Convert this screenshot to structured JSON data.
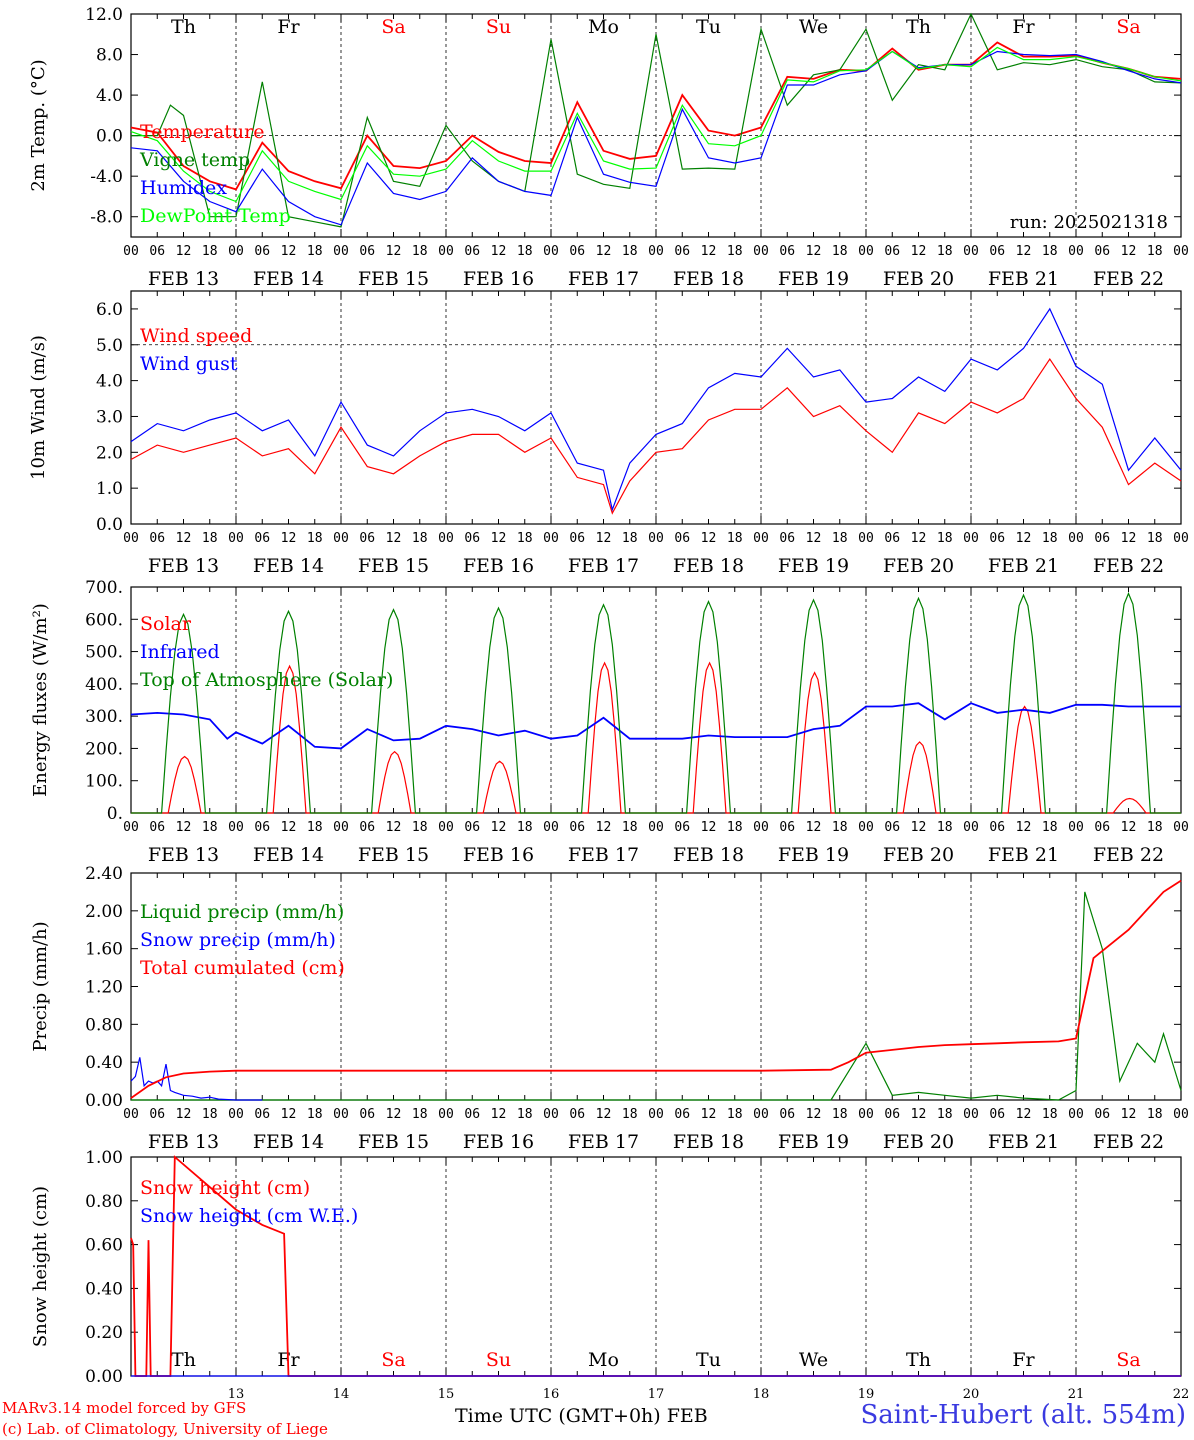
{
  "run_label": "run: 2025021318",
  "day_names": [
    "Th",
    "Fr",
    "Sa",
    "Su",
    "Mo",
    "Tu",
    "We",
    "Th",
    "Fr",
    "Sa"
  ],
  "day_colors": [
    "#000000",
    "#000000",
    "#ff0000",
    "#ff0000",
    "#000000",
    "#000000",
    "#000000",
    "#000000",
    "#000000",
    "#ff0000"
  ],
  "date_labels": [
    "FEB 13",
    "FEB 14",
    "FEB 15",
    "FEB 16",
    "FEB 17",
    "FEB 18",
    "FEB 19",
    "FEB 20",
    "FEB 21",
    "FEB 22"
  ],
  "hour_labels": [
    "00",
    "06",
    "12",
    "18"
  ],
  "hour_label_end": "00",
  "bottom_day_numbers": [
    "13",
    "14",
    "15",
    "16",
    "17",
    "18",
    "19",
    "20",
    "21",
    "22"
  ],
  "footer": {
    "credit_line1": "MARv3.14 model forced by GFS",
    "credit_line2": "(c) Lab. of Climatology, University of Liege",
    "time_axis": "Time UTC (GMT+0h)",
    "month": "FEB",
    "station": "Saint-Hubert (alt. 554m)"
  },
  "colors": {
    "red": "#ff0000",
    "green": "#008000",
    "blue": "#0000ff",
    "lightgreen": "#00ff00",
    "grid": "#000000"
  },
  "chart_data": [
    {
      "type": "line",
      "ylabel": "2m Temp. (°C)",
      "ylim": [
        -10,
        12
      ],
      "yticks": [
        "12.0",
        "8.0",
        "4.0",
        "0.0",
        "-4.0",
        "-8.0"
      ],
      "ytick_values": [
        12,
        8,
        4,
        0,
        -4,
        -8
      ],
      "dashed_y": [
        0
      ],
      "x_unit": "hours since Feb 13 00 UTC",
      "xlim": [
        0,
        240
      ],
      "legend_position": "top-left",
      "series": [
        {
          "name": "Temperature",
          "color": "#ff0000",
          "x": [
            0,
            6,
            12,
            18,
            24,
            30,
            36,
            42,
            48,
            54,
            60,
            66,
            72,
            78,
            84,
            90,
            96,
            102,
            108,
            114,
            120,
            126,
            132,
            138,
            144,
            150,
            156,
            162,
            168,
            174,
            180,
            186,
            192,
            198,
            204,
            210,
            216,
            222,
            228,
            234,
            240
          ],
          "y": [
            0.8,
            0.3,
            -3,
            -4.5,
            -5.3,
            -0.7,
            -3.5,
            -4.5,
            -5.2,
            0,
            -3,
            -3.2,
            -2.5,
            0,
            -1.6,
            -2.5,
            -2.7,
            3.3,
            -1.5,
            -2.3,
            -2,
            4,
            0.5,
            0,
            0.8,
            5.8,
            5.6,
            6.5,
            6.4,
            8.6,
            6.5,
            7,
            7,
            9.2,
            7.8,
            7.8,
            7.9,
            7.2,
            6.6,
            5.8,
            5.6
          ]
        },
        {
          "name": "Vigne temp",
          "color": "#008000",
          "x": [
            0,
            6,
            9,
            12,
            18,
            24,
            30,
            36,
            42,
            48,
            54,
            60,
            66,
            72,
            78,
            84,
            90,
            96,
            102,
            108,
            114,
            120,
            126,
            132,
            138,
            144,
            150,
            156,
            162,
            168,
            174,
            180,
            186,
            192,
            198,
            204,
            210,
            216,
            222,
            228,
            234,
            240
          ],
          "y": [
            0,
            0,
            3,
            2,
            -8,
            -8,
            5.3,
            -8,
            -8.5,
            -9,
            1.8,
            -4.5,
            -5,
            1,
            -2.5,
            -4.5,
            -5.5,
            9.5,
            -3.8,
            -4.8,
            -5.2,
            10,
            -3.3,
            -3.2,
            -3.3,
            10.5,
            3,
            6,
            6.5,
            10.5,
            3.5,
            7,
            6.5,
            12,
            6.5,
            7.2,
            7,
            7.5,
            6.8,
            6.5,
            5.3,
            5.2
          ]
        },
        {
          "name": "Humidex",
          "color": "#0000ff",
          "x": [
            0,
            6,
            12,
            18,
            24,
            30,
            36,
            42,
            48,
            54,
            60,
            66,
            72,
            78,
            84,
            90,
            96,
            102,
            108,
            114,
            120,
            126,
            132,
            138,
            144,
            150,
            156,
            162,
            168,
            174,
            180,
            186,
            192,
            198,
            204,
            210,
            216,
            222,
            228,
            234,
            240
          ],
          "y": [
            -1.2,
            -1.5,
            -4.5,
            -6.5,
            -7.5,
            -3.3,
            -6.5,
            -8,
            -8.8,
            -2.7,
            -5.7,
            -6.3,
            -5.5,
            -2.2,
            -4.5,
            -5.5,
            -5.9,
            1.8,
            -3.8,
            -4.6,
            -5,
            2.6,
            -2.2,
            -2.7,
            -2.2,
            5,
            5,
            6,
            6.4,
            8.3,
            6.7,
            7,
            7,
            8.3,
            8,
            7.9,
            8,
            7.3,
            6.4,
            5.6,
            5.2
          ]
        },
        {
          "name": "DewPoint Temp",
          "color": "#00ff00",
          "x": [
            0,
            6,
            12,
            18,
            24,
            30,
            36,
            42,
            48,
            54,
            60,
            66,
            72,
            78,
            84,
            90,
            96,
            102,
            108,
            114,
            120,
            126,
            132,
            138,
            144,
            150,
            156,
            162,
            168,
            174,
            180,
            186,
            192,
            198,
            204,
            210,
            216,
            222,
            228,
            234,
            240
          ],
          "y": [
            0.4,
            -0.5,
            -3.5,
            -5.5,
            -6.5,
            -1.5,
            -4.5,
            -5.5,
            -6.3,
            -1,
            -3.8,
            -4,
            -3.3,
            -0.5,
            -2.5,
            -3.5,
            -3.5,
            2.2,
            -2.5,
            -3.3,
            -3.2,
            3,
            -0.8,
            -1,
            0,
            5.5,
            5.3,
            6.4,
            6.5,
            8.3,
            6.6,
            7,
            6.8,
            8.7,
            7.5,
            7.5,
            7.8,
            7.2,
            6.6,
            5.8,
            5.4
          ]
        }
      ]
    },
    {
      "type": "line",
      "ylabel": "10m Wind (m/s)",
      "ylim": [
        0,
        6.5
      ],
      "yticks": [
        "6.0",
        "5.0",
        "4.0",
        "3.0",
        "2.0",
        "1.0",
        "0.0"
      ],
      "ytick_values": [
        6,
        5,
        4,
        3,
        2,
        1,
        0
      ],
      "dashed_y": [
        5
      ],
      "xlim": [
        0,
        240
      ],
      "legend_position": "top-left",
      "series": [
        {
          "name": "Wind speed",
          "color": "#ff0000",
          "x": [
            0,
            6,
            12,
            18,
            24,
            30,
            36,
            42,
            48,
            54,
            60,
            66,
            72,
            78,
            84,
            90,
            96,
            102,
            108,
            110,
            114,
            120,
            126,
            132,
            138,
            144,
            150,
            156,
            162,
            168,
            174,
            180,
            186,
            192,
            198,
            204,
            210,
            216,
            222,
            228,
            234,
            240
          ],
          "y": [
            1.8,
            2.2,
            2,
            2.2,
            2.4,
            1.9,
            2.1,
            1.4,
            2.7,
            1.6,
            1.4,
            1.9,
            2.3,
            2.5,
            2.5,
            2,
            2.4,
            1.3,
            1.1,
            0.3,
            1.2,
            2,
            2.1,
            2.9,
            3.2,
            3.2,
            3.8,
            3,
            3.3,
            2.6,
            2,
            3.1,
            2.8,
            3.4,
            3.1,
            3.5,
            4.6,
            3.5,
            2.7,
            1.1,
            1.7,
            1.2
          ]
        },
        {
          "name": "Wind gust",
          "color": "#0000ff",
          "x": [
            0,
            6,
            12,
            18,
            24,
            30,
            36,
            42,
            48,
            54,
            60,
            66,
            72,
            78,
            84,
            90,
            96,
            102,
            108,
            110,
            114,
            120,
            126,
            132,
            138,
            144,
            150,
            156,
            162,
            168,
            174,
            180,
            186,
            192,
            198,
            204,
            210,
            216,
            222,
            228,
            234,
            240
          ],
          "y": [
            2.3,
            2.8,
            2.6,
            2.9,
            3.1,
            2.6,
            2.9,
            1.9,
            3.4,
            2.2,
            1.9,
            2.6,
            3.1,
            3.2,
            3,
            2.6,
            3.1,
            1.7,
            1.5,
            0.4,
            1.7,
            2.5,
            2.8,
            3.8,
            4.2,
            4.1,
            4.9,
            4.1,
            4.3,
            3.4,
            3.5,
            4.1,
            3.7,
            4.6,
            4.3,
            4.9,
            6,
            4.4,
            3.9,
            1.5,
            2.4,
            1.5
          ]
        }
      ]
    },
    {
      "type": "line",
      "ylabel": "Energy fluxes (W/m²)",
      "ylim": [
        0,
        700
      ],
      "yticks": [
        "700.",
        "600.",
        "500.",
        "400.",
        "300.",
        "200.",
        "100.",
        "0."
      ],
      "ytick_values": [
        700,
        600,
        500,
        400,
        300,
        200,
        100,
        0
      ],
      "dashed_y": [],
      "xlim": [
        0,
        240
      ],
      "legend_position": "top-left",
      "series": [
        {
          "name": "Solar",
          "color": "#ff0000",
          "day_peaks": [
            175,
            455,
            190,
            160,
            465,
            465,
            435,
            220,
            330,
            45
          ]
        },
        {
          "name": "Infrared",
          "color": "#0000ff",
          "x": [
            0,
            6,
            12,
            18,
            22,
            24,
            30,
            36,
            42,
            48,
            54,
            60,
            66,
            72,
            78,
            84,
            90,
            96,
            102,
            108,
            114,
            120,
            126,
            132,
            138,
            144,
            150,
            156,
            162,
            168,
            174,
            180,
            186,
            192,
            198,
            204,
            210,
            216,
            222,
            228,
            234,
            240
          ],
          "y": [
            305,
            310,
            305,
            290,
            230,
            250,
            215,
            270,
            205,
            200,
            260,
            225,
            230,
            270,
            260,
            240,
            255,
            230,
            240,
            295,
            230,
            230,
            230,
            240,
            235,
            235,
            235,
            260,
            270,
            330,
            330,
            340,
            290,
            340,
            310,
            320,
            310,
            335,
            335,
            330,
            330,
            330
          ]
        },
        {
          "name": "Top of Atmosphere (Solar)",
          "color": "#008000",
          "day_peaks": [
            615,
            625,
            630,
            635,
            645,
            655,
            660,
            665,
            675,
            680
          ]
        }
      ]
    },
    {
      "type": "line",
      "ylabel": "Precip (mm/h)",
      "ylim": [
        0,
        2.4
      ],
      "yticks": [
        "2.40",
        "2.00",
        "1.60",
        "1.20",
        "0.80",
        "0.40",
        "0.00"
      ],
      "ytick_values": [
        2.4,
        2.0,
        1.6,
        1.2,
        0.8,
        0.4,
        0
      ],
      "dashed_y": [],
      "xlim": [
        0,
        240
      ],
      "legend_position": "top-left",
      "series": [
        {
          "name": "Liquid precip (mm/h)",
          "color": "#008000",
          "x": [
            0,
            6,
            12,
            24,
            48,
            96,
            144,
            160,
            164,
            168,
            174,
            180,
            186,
            192,
            198,
            204,
            212,
            216,
            218,
            222,
            226,
            230,
            234,
            236,
            240
          ],
          "y": [
            0,
            0,
            0,
            0,
            0,
            0,
            0,
            0,
            0.3,
            0.6,
            0.05,
            0.08,
            0.05,
            0.02,
            0.05,
            0.02,
            0,
            0.1,
            2.2,
            1.6,
            0.2,
            0.6,
            0.4,
            0.7,
            0.1
          ]
        },
        {
          "name": "Snow precip (mm/h)",
          "color": "#0000ff",
          "x": [
            0,
            1,
            2,
            3,
            4,
            5,
            6,
            7,
            8,
            9,
            10,
            12,
            14,
            16,
            18,
            20,
            24,
            30
          ],
          "y": [
            0.2,
            0.25,
            0.45,
            0.15,
            0.2,
            0.18,
            0.2,
            0.15,
            0.38,
            0.1,
            0.08,
            0.05,
            0.04,
            0.02,
            0.03,
            0.01,
            0,
            0
          ]
        },
        {
          "name": "Total cumulated (cm)",
          "color": "#ff0000",
          "x": [
            0,
            4,
            8,
            12,
            18,
            24,
            48,
            96,
            144,
            160,
            164,
            168,
            174,
            180,
            186,
            192,
            198,
            204,
            212,
            216,
            220,
            228,
            236,
            240
          ],
          "y": [
            0.02,
            0.15,
            0.24,
            0.28,
            0.3,
            0.31,
            0.31,
            0.31,
            0.31,
            0.32,
            0.4,
            0.5,
            0.53,
            0.56,
            0.58,
            0.59,
            0.6,
            0.61,
            0.62,
            0.65,
            1.5,
            1.8,
            2.2,
            2.32
          ]
        }
      ]
    },
    {
      "type": "line",
      "ylabel": "Snow height (cm)",
      "ylim": [
        0,
        1
      ],
      "yticks": [
        "1.00",
        "0.80",
        "0.60",
        "0.40",
        "0.20",
        "0.00"
      ],
      "ytick_values": [
        1,
        0.8,
        0.6,
        0.4,
        0.2,
        0
      ],
      "dashed_y": [],
      "xlim": [
        0,
        240
      ],
      "legend_position": "top-left",
      "series": [
        {
          "name": "Snow height (cm)",
          "color": "#ff0000",
          "x": [
            0,
            0.5,
            1,
            3.5,
            4,
            4.5,
            6,
            7,
            8,
            9,
            10,
            24,
            30,
            35,
            36,
            240
          ],
          "y": [
            0.63,
            0.6,
            0,
            0,
            0.62,
            0,
            0,
            0,
            0,
            0,
            1,
            0.76,
            0.69,
            0.65,
            0,
            0
          ]
        },
        {
          "name": "Snow height (cm W.E.)",
          "color": "#0000ff",
          "x": [
            0,
            240
          ],
          "y": [
            0,
            0
          ]
        }
      ]
    }
  ]
}
